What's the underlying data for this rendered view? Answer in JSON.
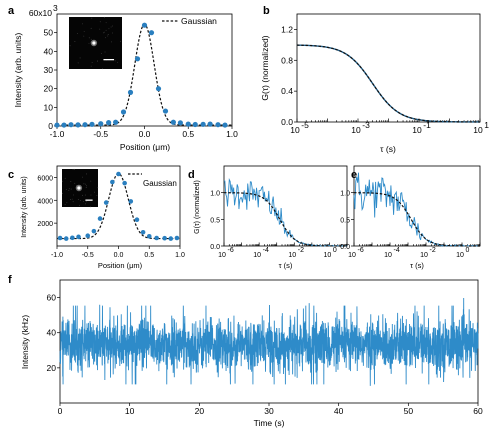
{
  "colors": {
    "data": "#2a7fbf",
    "trace": "#2e8bc9",
    "fit": "#111111"
  },
  "chart_data": [
    {
      "id": "a",
      "panel_label": "a",
      "type": "scatter",
      "legend": "Gaussian",
      "legend_position": "top-right",
      "inset": "micrograph-with-scalebar",
      "xlabel": "Position (μm)",
      "ylabel": "Intensity (arb. units)",
      "y_exponent_label": "60x10",
      "y_exponent_sup": "3",
      "xlim": [
        -1.0,
        1.0
      ],
      "ylim": [
        0,
        60
      ],
      "xticks": [
        "-1.0",
        "-0.5",
        "0.0",
        "0.5",
        "1.0"
      ],
      "yticks": [
        "0",
        "10",
        "20",
        "30",
        "40",
        "50"
      ],
      "y_scale": 1000,
      "fit": {
        "type": "gaussian",
        "amplitude": 54,
        "center": 0.0,
        "sigma": 0.11,
        "offset": 0.5
      },
      "points": [
        {
          "x": -1.0,
          "y": 0.5
        },
        {
          "x": -0.92,
          "y": 0.5
        },
        {
          "x": -0.84,
          "y": 0.7
        },
        {
          "x": -0.76,
          "y": 0.6
        },
        {
          "x": -0.68,
          "y": 0.7
        },
        {
          "x": -0.6,
          "y": 0.9
        },
        {
          "x": -0.5,
          "y": 1.2
        },
        {
          "x": -0.41,
          "y": 1.8
        },
        {
          "x": -0.33,
          "y": 2.0
        },
        {
          "x": -0.24,
          "y": 7.5
        },
        {
          "x": -0.16,
          "y": 18.0
        },
        {
          "x": -0.08,
          "y": 36.0
        },
        {
          "x": 0.0,
          "y": 54.0
        },
        {
          "x": 0.08,
          "y": 50.0
        },
        {
          "x": 0.16,
          "y": 20.0
        },
        {
          "x": 0.24,
          "y": 8.0
        },
        {
          "x": 0.33,
          "y": 2.0
        },
        {
          "x": 0.41,
          "y": 1.7
        },
        {
          "x": 0.5,
          "y": 1.0
        },
        {
          "x": 0.58,
          "y": 0.8
        },
        {
          "x": 0.67,
          "y": 0.9
        },
        {
          "x": 0.75,
          "y": 1.0
        },
        {
          "x": 0.84,
          "y": 0.7
        },
        {
          "x": 0.92,
          "y": 0.5
        }
      ]
    },
    {
      "id": "b",
      "panel_label": "b",
      "type": "line",
      "ylabel": "G(τ) (normalized)",
      "xlabel": "τ (s)",
      "x_scale": "log",
      "xlim_exp": [
        -5,
        1
      ],
      "ylim": [
        0,
        1.4
      ],
      "xtick_exps": [
        "-5",
        "-3",
        "-1",
        "1"
      ],
      "yticks": [
        "0.0",
        "0.4",
        "0.8",
        "1.2"
      ],
      "curve": {
        "amplitude": 1.0,
        "tau_c": 0.003
      }
    },
    {
      "id": "c",
      "panel_label": "c",
      "type": "scatter",
      "legend": "Gaussian",
      "legend_position": "top-right",
      "inset": "micrograph-with-scalebar",
      "xlabel": "Position (μm)",
      "ylabel": "Intensity (arb. units)",
      "xlim": [
        -1.0,
        1.0
      ],
      "ylim": [
        0,
        7000
      ],
      "xticks": [
        "-1.0",
        "-0.5",
        "0.0",
        "0.5",
        "1.0"
      ],
      "yticks": [
        "2000",
        "4000",
        "6000"
      ],
      "fit": {
        "type": "gaussian",
        "amplitude": 5700,
        "center": 0.0,
        "sigma": 0.16,
        "offset": 650
      },
      "points": [
        {
          "x": -0.95,
          "y": 700
        },
        {
          "x": -0.85,
          "y": 650
        },
        {
          "x": -0.75,
          "y": 720
        },
        {
          "x": -0.65,
          "y": 800
        },
        {
          "x": -0.5,
          "y": 900
        },
        {
          "x": -0.4,
          "y": 1300
        },
        {
          "x": -0.3,
          "y": 2400
        },
        {
          "x": -0.2,
          "y": 3800
        },
        {
          "x": -0.1,
          "y": 5600
        },
        {
          "x": 0.0,
          "y": 6300
        },
        {
          "x": 0.1,
          "y": 5500
        },
        {
          "x": 0.2,
          "y": 3900
        },
        {
          "x": 0.3,
          "y": 2300
        },
        {
          "x": 0.4,
          "y": 1200
        },
        {
          "x": 0.5,
          "y": 850
        },
        {
          "x": 0.62,
          "y": 700
        },
        {
          "x": 0.75,
          "y": 680
        },
        {
          "x": 0.85,
          "y": 650
        },
        {
          "x": 0.95,
          "y": 700
        }
      ]
    },
    {
      "id": "d",
      "panel_label": "d",
      "type": "line",
      "ylabel": "G(τ) (normalized)",
      "xlabel": "τ (s)",
      "x_scale": "log",
      "xlim_exp": [
        -6,
        1
      ],
      "ylim": [
        0,
        1.5
      ],
      "xtick_exps": [
        "-6",
        "-4",
        "-2",
        "0"
      ],
      "yticks": [
        "0.0",
        "0.5",
        "1.0"
      ],
      "curve": {
        "amplitude": 1.0,
        "tau_c": 0.0015
      },
      "noise_amplitude": 0.15
    },
    {
      "id": "e",
      "panel_label": "e",
      "type": "line",
      "xlabel": "τ (s)",
      "x_scale": "log",
      "xlim_exp": [
        -6,
        1
      ],
      "ylim": [
        0,
        1.5
      ],
      "xtick_exps": [
        "-6",
        "-4",
        "-2",
        "0"
      ],
      "yticks": [
        "0.0",
        "0.5",
        "1.0"
      ],
      "curve": {
        "amplitude": 1.0,
        "tau_c": 0.0015
      },
      "noise_amplitude": 0.2
    },
    {
      "id": "f",
      "panel_label": "f",
      "type": "line",
      "xlabel": "Time (s)",
      "ylabel": "Intensity (kHz)",
      "xlim": [
        0,
        60
      ],
      "ylim": [
        0,
        70
      ],
      "xticks": [
        "0",
        "10",
        "20",
        "30",
        "40",
        "50",
        "60"
      ],
      "yticks": [
        "20",
        "40",
        "60"
      ],
      "trace": {
        "mean": 33,
        "sd": 7,
        "min": 8,
        "max": 66
      }
    }
  ]
}
